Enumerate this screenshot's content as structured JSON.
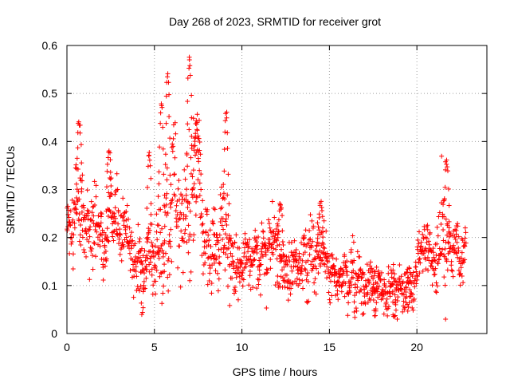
{
  "chart_data": {
    "type": "scatter",
    "title": "Day 268 of 2023, SRMTID for receiver grot",
    "xlabel": "GPS time / hours",
    "ylabel": "SRMTID / TECUs",
    "xlim": [
      0,
      24
    ],
    "ylim": [
      0,
      0.6
    ],
    "x_ticks": [
      0,
      5,
      10,
      15,
      20
    ],
    "x_tick_labels": [
      "0",
      "5",
      "10",
      "15",
      "20"
    ],
    "y_ticks": [
      0,
      0.1,
      0.2,
      0.3,
      0.4,
      0.5,
      0.6
    ],
    "y_tick_labels": [
      "0",
      "0.1",
      "0.2",
      "0.3",
      "0.4",
      "0.5",
      "0.6"
    ],
    "grid": true,
    "marker": "+",
    "color": "#ff0000",
    "x_range_data": [
      0,
      22.8
    ],
    "profile_hours": [
      0,
      0.5,
      1,
      1.5,
      2,
      2.5,
      3,
      3.5,
      4,
      4.5,
      5,
      5.5,
      6,
      6.5,
      7,
      7.5,
      8,
      8.5,
      9,
      9.5,
      10,
      10.5,
      11,
      11.5,
      12,
      12.5,
      13,
      13.5,
      14,
      14.5,
      15,
      15.5,
      16,
      16.5,
      17,
      17.5,
      18,
      18.5,
      19,
      19.5,
      20,
      20.5,
      21,
      21.5,
      22,
      22.5,
      22.8
    ],
    "profile_median": [
      0.22,
      0.25,
      0.27,
      0.22,
      0.18,
      0.25,
      0.23,
      0.2,
      0.16,
      0.13,
      0.18,
      0.17,
      0.28,
      0.26,
      0.3,
      0.32,
      0.17,
      0.18,
      0.22,
      0.17,
      0.15,
      0.16,
      0.15,
      0.17,
      0.18,
      0.15,
      0.13,
      0.15,
      0.17,
      0.16,
      0.14,
      0.13,
      0.12,
      0.11,
      0.1,
      0.09,
      0.1,
      0.1,
      0.09,
      0.1,
      0.13,
      0.15,
      0.16,
      0.2,
      0.17,
      0.18,
      0.19
    ],
    "profile_spread": [
      0.06,
      0.08,
      0.07,
      0.08,
      0.07,
      0.07,
      0.06,
      0.05,
      0.06,
      0.06,
      0.09,
      0.09,
      0.12,
      0.1,
      0.14,
      0.13,
      0.06,
      0.07,
      0.09,
      0.06,
      0.05,
      0.05,
      0.06,
      0.06,
      0.07,
      0.05,
      0.05,
      0.05,
      0.07,
      0.06,
      0.05,
      0.05,
      0.05,
      0.05,
      0.05,
      0.04,
      0.04,
      0.04,
      0.04,
      0.04,
      0.05,
      0.05,
      0.06,
      0.09,
      0.05,
      0.05,
      0.05
    ],
    "peaks": [
      {
        "x": 0.7,
        "y": 0.44
      },
      {
        "x": 2.4,
        "y": 0.38
      },
      {
        "x": 4.7,
        "y": 0.38
      },
      {
        "x": 5.4,
        "y": 0.48
      },
      {
        "x": 5.75,
        "y": 0.54
      },
      {
        "x": 7.0,
        "y": 0.57
      },
      {
        "x": 7.4,
        "y": 0.44
      },
      {
        "x": 9.1,
        "y": 0.46
      },
      {
        "x": 12.2,
        "y": 0.27
      },
      {
        "x": 14.5,
        "y": 0.27
      },
      {
        "x": 21.7,
        "y": 0.36
      }
    ],
    "minima": [
      {
        "x": 4.3,
        "y": 0.04
      },
      {
        "x": 17.6,
        "y": 0.04
      },
      {
        "x": 18.7,
        "y": 0.03
      },
      {
        "x": 19.5,
        "y": 0.05
      }
    ]
  }
}
